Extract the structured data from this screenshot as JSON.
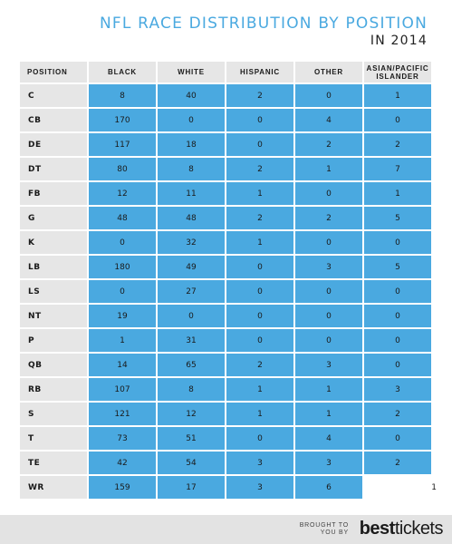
{
  "header": {
    "title": "NFL RACE DISTRIBUTION BY POSITION",
    "subtitle": "IN 2014"
  },
  "chart_data": {
    "type": "table",
    "columns": [
      "POSITION",
      "BLACK",
      "WHITE",
      "HISPANIC",
      "OTHER",
      "ASIAN/PACIFIC ISLANDER"
    ],
    "rows": [
      [
        "C",
        "8",
        "40",
        "2",
        "0",
        "1"
      ],
      [
        "CB",
        "170",
        "0",
        "0",
        "4",
        "0"
      ],
      [
        "DE",
        "117",
        "18",
        "0",
        "2",
        "2"
      ],
      [
        "DT",
        "80",
        "8",
        "2",
        "1",
        "7"
      ],
      [
        "FB",
        "12",
        "11",
        "1",
        "0",
        "1"
      ],
      [
        "G",
        "48",
        "48",
        "2",
        "2",
        "5"
      ],
      [
        "K",
        "0",
        "32",
        "1",
        "0",
        "0"
      ],
      [
        "LB",
        "180",
        "49",
        "0",
        "3",
        "5"
      ],
      [
        "LS",
        "0",
        "27",
        "0",
        "0",
        "0"
      ],
      [
        "NT",
        "19",
        "0",
        "0",
        "0",
        "0"
      ],
      [
        "P",
        "1",
        "31",
        "0",
        "0",
        "0"
      ],
      [
        "QB",
        "14",
        "65",
        "2",
        "3",
        "0"
      ],
      [
        "RB",
        "107",
        "8",
        "1",
        "1",
        "3"
      ],
      [
        "S",
        "121",
        "12",
        "1",
        "1",
        "2"
      ],
      [
        "T",
        "73",
        "51",
        "0",
        "4",
        "0"
      ],
      [
        "TE",
        "42",
        "54",
        "3",
        "3",
        "2"
      ],
      [
        "WR",
        "159",
        "17",
        "3",
        "6",
        "1"
      ]
    ]
  },
  "footer": {
    "brought_line1": "BROUGHT TO",
    "brought_line2": "YOU BY",
    "logo_bold": "best",
    "logo_light": "tickets"
  },
  "colors": {
    "accent": "#4aa9e0",
    "header_bg": "#e6e6e6",
    "footer_bg": "#e3e3e3"
  }
}
